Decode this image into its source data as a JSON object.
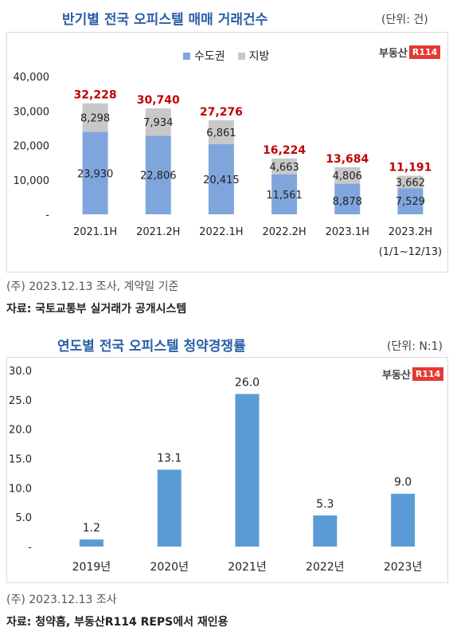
{
  "top": {
    "title": "반기별 전국 오피스텔 매매 거래건수",
    "unit": "(단위: 건)",
    "logo_text": "부동산",
    "logo_box": "R114",
    "note": "(주) 2023.12.13 조사, 계약일 기준",
    "source": "자료: 국토교통부 실거래가 공개시스템",
    "chart_data": {
      "type": "bar",
      "stacked": true,
      "categories": [
        "2021.1H",
        "2021.2H",
        "2022.1H",
        "2022.2H",
        "2023.1H",
        "2023.2H"
      ],
      "category_sub": [
        "",
        "",
        "",
        "",
        "",
        "(1/1~12/13)"
      ],
      "series": [
        {
          "name": "수도권",
          "values": [
            23930,
            22806,
            20415,
            11561,
            8878,
            7529
          ],
          "color": "#7fa6dc"
        },
        {
          "name": "지방",
          "values": [
            8298,
            7934,
            6861,
            4663,
            4806,
            3662
          ],
          "color": "#c8c8c8"
        }
      ],
      "totals": [
        32228,
        30740,
        27276,
        16224,
        13684,
        11191
      ],
      "value_labels": [
        "23,930",
        "22,806",
        "20,415",
        "11,561",
        "8,878",
        "7,529"
      ],
      "value_labels_2": [
        "8,298",
        "7,934",
        "6,861",
        "4,663",
        "4,806",
        "3,662"
      ],
      "total_labels": [
        "32,228",
        "30,740",
        "27,276",
        "16,224",
        "13,684",
        "11,191"
      ],
      "total_color": "#c00000",
      "ylim": [
        0,
        40000
      ],
      "yticks": [
        0,
        10000,
        20000,
        30000,
        40000
      ],
      "ytick_labels": [
        "-",
        "10,000",
        "20,000",
        "30,000",
        "40,000"
      ],
      "legend": "top-center"
    }
  },
  "bottom": {
    "title": "연도별 전국 오피스텔 청약경쟁률",
    "unit": "(단위: N:1)",
    "logo_text": "부동산",
    "logo_box": "R114",
    "note": "(주) 2023.12.13 조사",
    "source": "자료: 청약홈, 부동산R114 REPS에서 재인용",
    "chart_data": {
      "type": "bar",
      "categories": [
        "2019년",
        "2020년",
        "2021년",
        "2022년",
        "2023년"
      ],
      "values": [
        1.2,
        13.1,
        26.0,
        5.3,
        9.0
      ],
      "value_labels": [
        "1.2",
        "13.1",
        "26.0",
        "5.3",
        "9.0"
      ],
      "color": "#5b9bd5",
      "ylim": [
        0,
        30
      ],
      "yticks": [
        0,
        5,
        10,
        15,
        20,
        25,
        30
      ],
      "ytick_labels": [
        "-",
        "5.0",
        "10.0",
        "15.0",
        "20.0",
        "25.0",
        "30.0"
      ]
    }
  }
}
